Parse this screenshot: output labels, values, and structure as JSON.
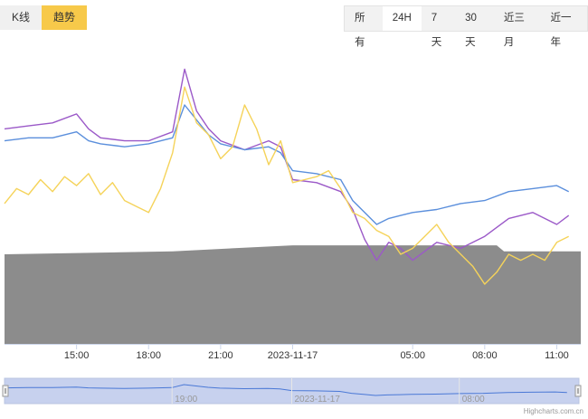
{
  "mode_tabs": [
    {
      "label": "K线",
      "active": false
    },
    {
      "label": "趋势",
      "active": true
    }
  ],
  "range_tabs": [
    {
      "label": "所有",
      "active": false
    },
    {
      "label": "24H",
      "active": true
    },
    {
      "label": "7天",
      "active": false
    },
    {
      "label": "30天",
      "active": false
    },
    {
      "label": "近三月",
      "active": false
    },
    {
      "label": "近一年",
      "active": false
    }
  ],
  "credit": "Highcharts.com.cn",
  "colors": {
    "purple": "#9b59c8",
    "blue": "#5b8fdc",
    "yellow": "#f5d35a",
    "volume": "#8c8c8c",
    "navigator_fill": "#c7d1ee",
    "navigator_line": "#4a78d6"
  },
  "chart_data": {
    "type": "line",
    "x_unit": "hours since 12:00 on 2023-11-16",
    "x_ticks": [
      {
        "x": 3,
        "label": "15:00"
      },
      {
        "x": 6,
        "label": "18:00"
      },
      {
        "x": 9,
        "label": "21:00"
      },
      {
        "x": 12,
        "label": "2023-11-17"
      },
      {
        "x": 17,
        "label": "05:00"
      },
      {
        "x": 20,
        "label": "08:00"
      },
      {
        "x": 23,
        "label": "11:00"
      }
    ],
    "navigator_labels": [
      {
        "x": 7,
        "label": "19:00"
      },
      {
        "x": 12,
        "label": "2023-11-17"
      },
      {
        "x": 19,
        "label": "08:00"
      }
    ],
    "y_range": [
      0,
      100
    ],
    "series": [
      {
        "name": "",
        "color": "#9b59c8",
        "x": [
          0,
          1,
          2,
          3,
          3.5,
          4,
          5,
          6,
          7,
          7.5,
          8,
          8.5,
          9,
          10,
          11,
          11.5,
          12,
          13,
          14,
          14.5,
          15,
          15.5,
          16,
          16.5,
          17,
          18,
          19,
          20,
          21,
          22,
          23,
          23.5
        ],
        "y": [
          72,
          73,
          74,
          77,
          72,
          69,
          68,
          68,
          71,
          92,
          78,
          72,
          68,
          65,
          68,
          66,
          55,
          54,
          51,
          45,
          35,
          28,
          34,
          32,
          28,
          34,
          32,
          36,
          42,
          44,
          40,
          43
        ]
      },
      {
        "name": "",
        "color": "#5b8fdc",
        "x": [
          0,
          1,
          2,
          3,
          3.5,
          4,
          5,
          6,
          7,
          7.5,
          8,
          8.5,
          9,
          10,
          11,
          11.5,
          12,
          13,
          14,
          14.5,
          15,
          15.5,
          16,
          16.5,
          17,
          18,
          19,
          20,
          21,
          22,
          23,
          23.5
        ],
        "y": [
          68,
          69,
          69,
          71,
          68,
          67,
          66,
          67,
          69,
          80,
          75,
          70,
          67,
          65,
          66,
          64,
          58,
          57,
          55,
          48,
          44,
          40,
          42,
          43,
          44,
          45,
          47,
          48,
          51,
          52,
          53,
          51
        ]
      },
      {
        "name": "",
        "color": "#f5d35a",
        "x": [
          0,
          0.5,
          1,
          1.5,
          2,
          2.5,
          3,
          3.5,
          4,
          4.5,
          5,
          5.5,
          6,
          6.5,
          7,
          7.5,
          8,
          8.5,
          9,
          9.5,
          10,
          10.5,
          11,
          11.5,
          12,
          12.5,
          13,
          13.5,
          14,
          14.5,
          15,
          15.5,
          16,
          16.5,
          17,
          17.5,
          18,
          18.5,
          19,
          19.5,
          20,
          20.5,
          21,
          21.5,
          22,
          22.5,
          23,
          23.5
        ],
        "y": [
          47,
          52,
          50,
          55,
          51,
          56,
          53,
          57,
          50,
          54,
          48,
          46,
          44,
          52,
          64,
          86,
          74,
          70,
          62,
          66,
          80,
          72,
          60,
          68,
          54,
          55,
          56,
          58,
          52,
          44,
          42,
          38,
          36,
          30,
          32,
          36,
          40,
          34,
          30,
          26,
          20,
          24,
          30,
          28,
          30,
          28,
          34,
          36
        ]
      }
    ],
    "volume": {
      "x": [
        0,
        7,
        12,
        20.5,
        20.8,
        24
      ],
      "y": [
        30,
        31,
        33,
        33,
        31,
        31
      ]
    }
  }
}
